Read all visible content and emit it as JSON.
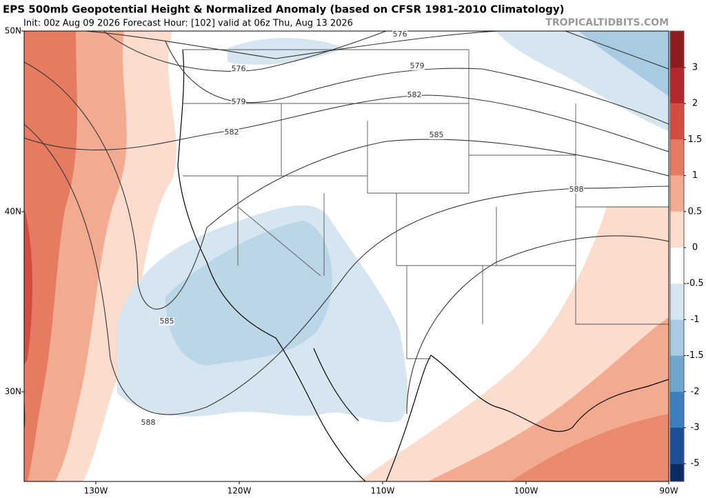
{
  "header": {
    "title": "EPS 500mb Geopotential Height & Normalized Anomaly (based on CFSR 1981-2010 Climatology)",
    "subtitle": "Init: 00z Aug 09 2026   Forecast Hour: [102]   valid at 06z Thu, Aug 13 2026",
    "source": "TROPICALTIDBITS.COM"
  },
  "map": {
    "lat_labels": [
      "50N",
      "40N",
      "30N"
    ],
    "lon_labels": [
      "130W",
      "120W",
      "110W",
      "100W",
      "90W"
    ],
    "contour_labels": [
      "576",
      "576",
      "579",
      "579",
      "582",
      "582",
      "585",
      "585",
      "588",
      "588"
    ]
  },
  "colorbar": {
    "ticks": [
      3,
      2,
      1.5,
      1,
      0.5,
      0,
      -0.5,
      -1,
      -1.5,
      -2,
      -3,
      -5
    ],
    "colors": [
      "#8e1b20",
      "#b3282d",
      "#d24d3e",
      "#e57c61",
      "#f2ab91",
      "#fbdccd",
      "#ffffff",
      "#d5e6f1",
      "#a8cbe1",
      "#6ea6cf",
      "#3b7fbd",
      "#1c4f97",
      "#0b2b67"
    ]
  }
}
